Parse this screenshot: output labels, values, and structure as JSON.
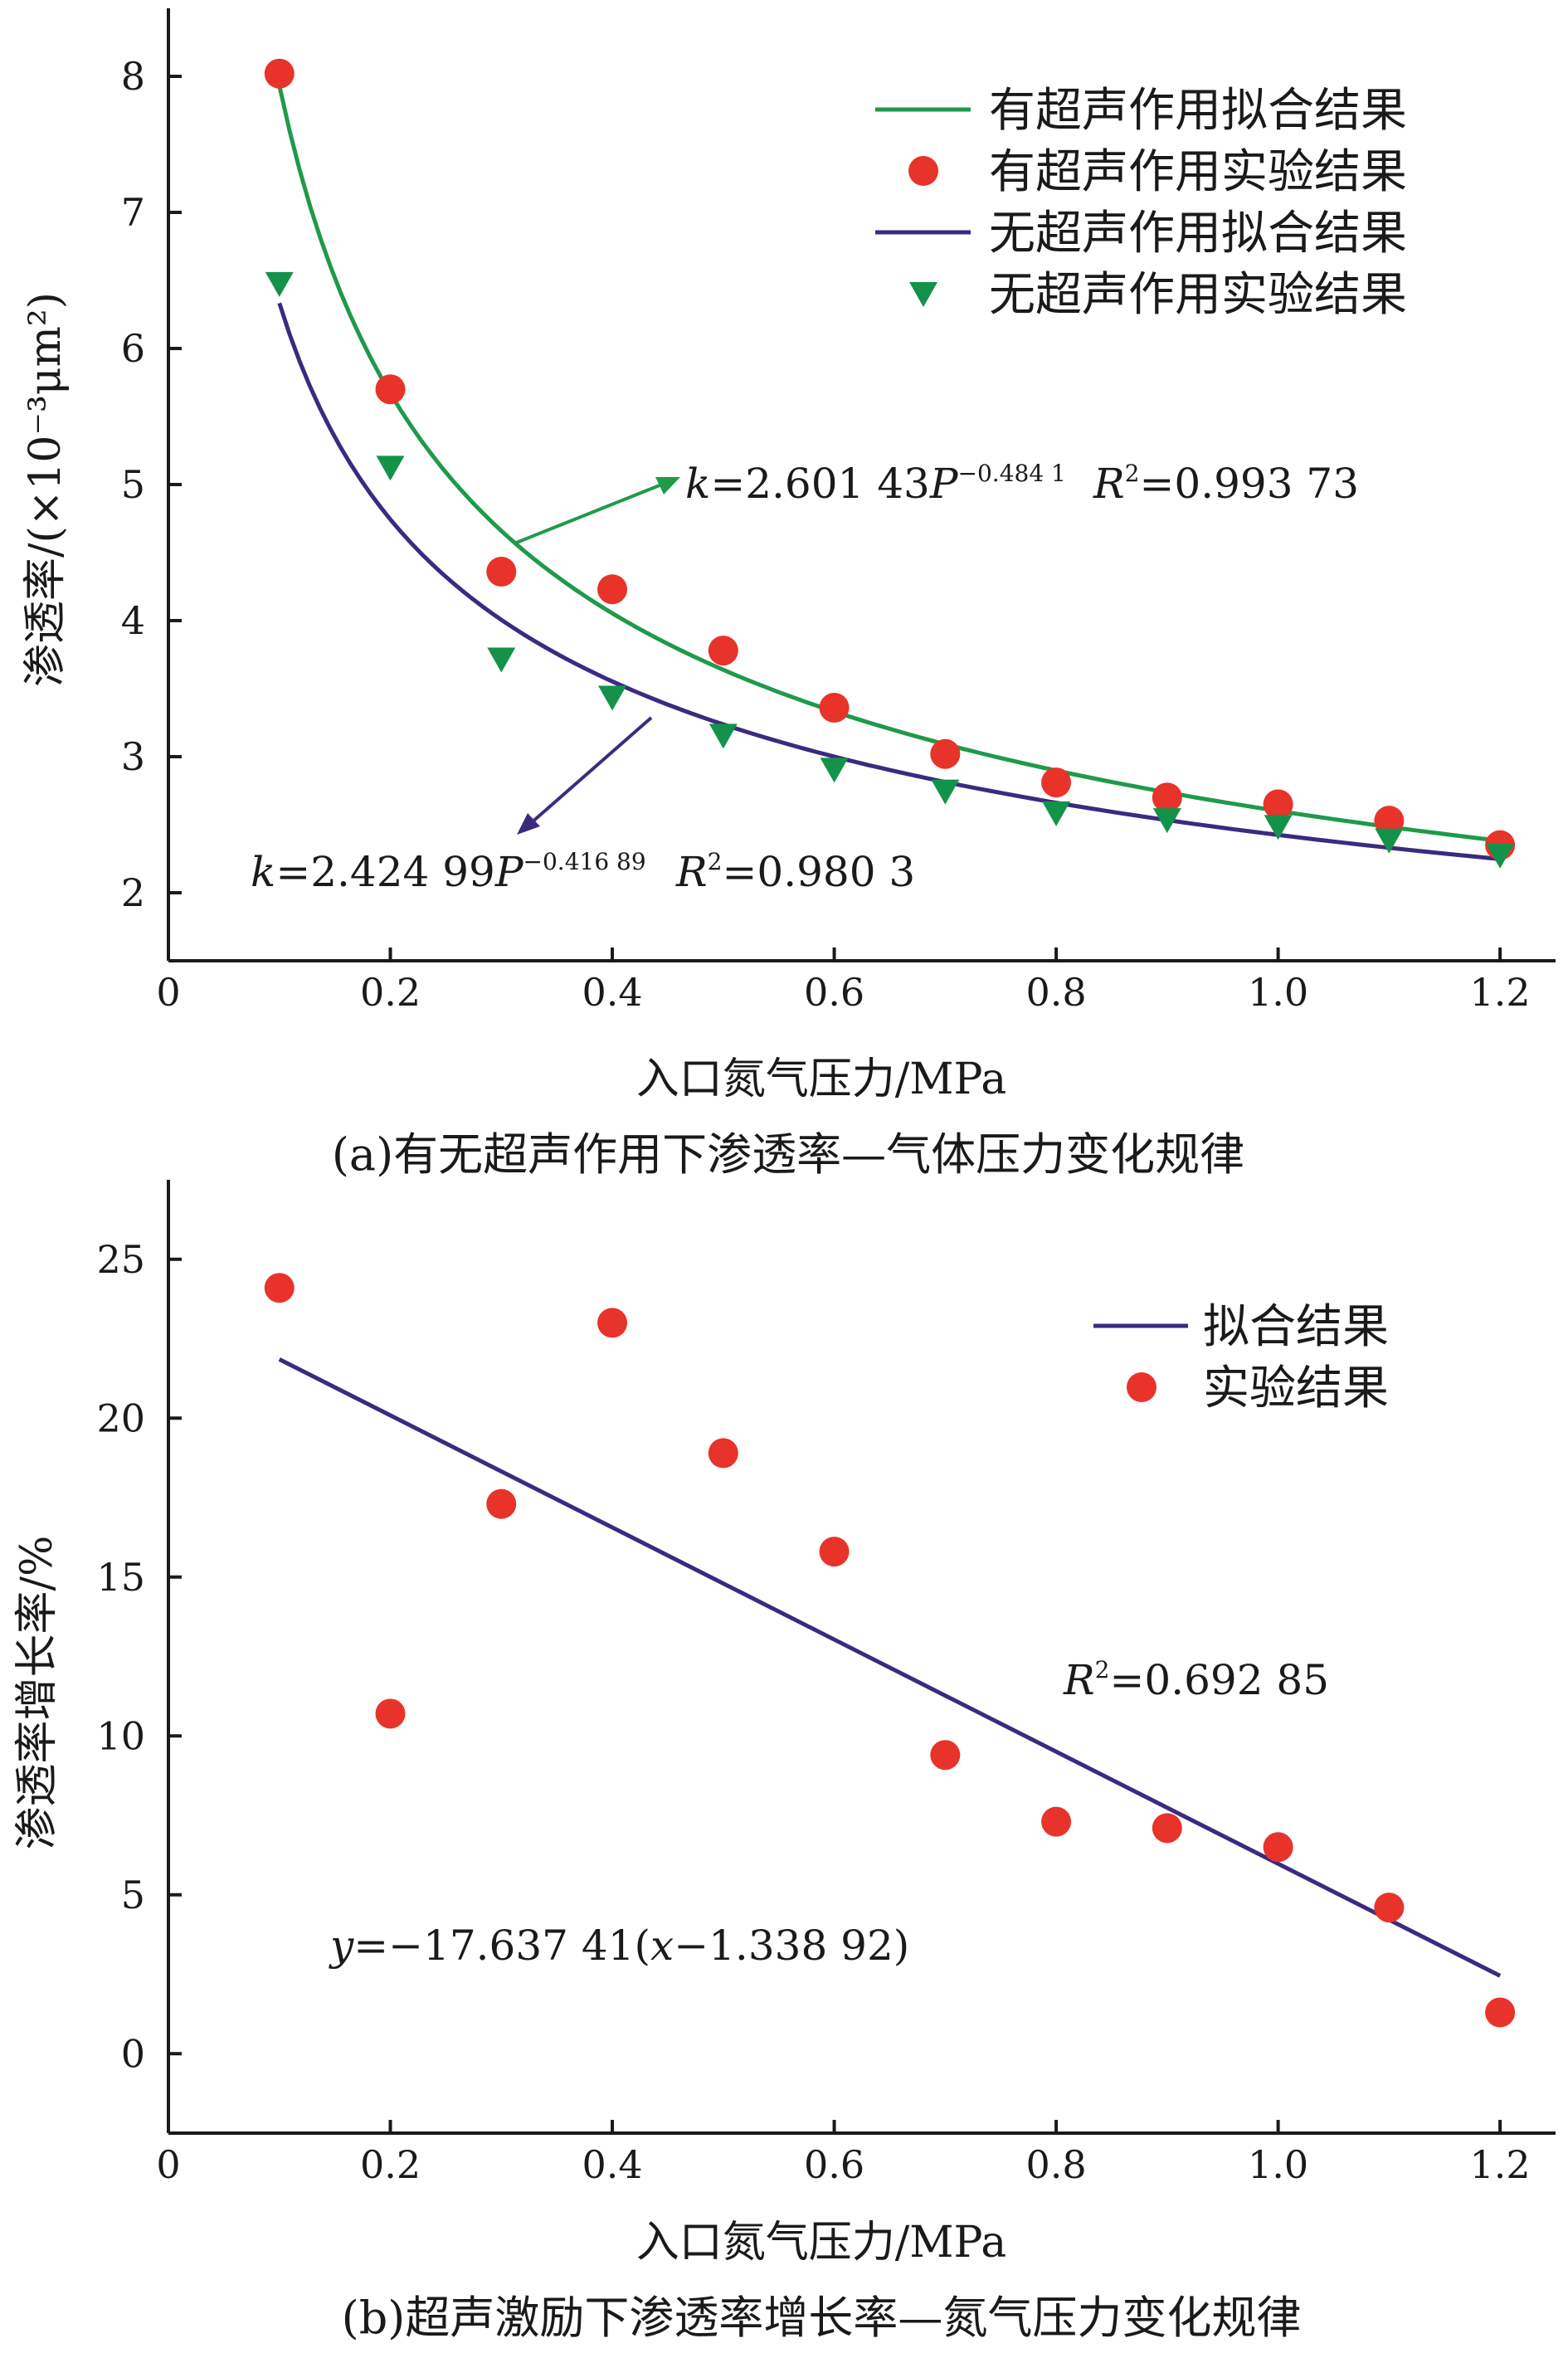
{
  "colors": {
    "green": "#1f9a4a",
    "purple": "#3b2a80",
    "red_dot": "#e8332a",
    "triangle": "#14924a",
    "axis": "#1a1a1a"
  },
  "chart_data": [
    {
      "id": "a",
      "type": "scatter",
      "xlabel": "入口氮气压力/MPa",
      "ylabel": "渗透率/(×10⁻³μm²)",
      "caption": "(a)有无超声作用下渗透率—气体压力变化规律",
      "xlim": [
        0,
        1.25
      ],
      "ylim": [
        1.5,
        8.5
      ],
      "xticks": [
        0,
        0.2,
        0.4,
        0.6,
        0.8,
        1.0,
        1.2
      ],
      "xtick_labels": [
        "0",
        "0.2",
        "0.4",
        "0.6",
        "0.8",
        "1.0",
        "1.2"
      ],
      "yticks": [
        2,
        3,
        4,
        5,
        6,
        7,
        8
      ],
      "ytick_labels": [
        "2",
        "3",
        "4",
        "5",
        "6",
        "7",
        "8"
      ],
      "legend": [
        "有超声作用拟合结果",
        "有超声作用实验结果",
        "无超声作用拟合结果",
        "无超声作用实验结果"
      ],
      "legend_position": "top-right",
      "x": [
        0.1,
        0.2,
        0.3,
        0.4,
        0.5,
        0.6,
        0.7,
        0.8,
        0.9,
        1.0,
        1.1,
        1.2
      ],
      "series": [
        {
          "name": "有超声作用拟合结果",
          "kind": "fit",
          "color": "#1f9a4a",
          "a": 2.60143,
          "b": -0.4841,
          "xrange": [
            0.1,
            1.2
          ]
        },
        {
          "name": "有超声作用实验结果",
          "kind": "circle",
          "color": "#e8332a",
          "values": [
            8.02,
            5.7,
            4.36,
            4.23,
            3.78,
            3.36,
            3.02,
            2.81,
            2.7,
            2.65,
            2.53,
            2.35
          ]
        },
        {
          "name": "无超声作用拟合结果",
          "kind": "fit",
          "color": "#3b2a80",
          "a": 2.42499,
          "b": -0.41689,
          "xrange": [
            0.1,
            1.2
          ]
        },
        {
          "name": "无超声作用实验结果",
          "kind": "triangle",
          "color": "#14924a",
          "values": [
            6.47,
            5.12,
            3.71,
            3.43,
            3.15,
            2.9,
            2.74,
            2.58,
            2.53,
            2.48,
            2.38,
            2.27
          ]
        }
      ],
      "annotations": {
        "with_fit": {
          "k": "k",
          "eq": "=2.601 43",
          "P": "P",
          "exp": "−0.484 1",
          "R": "R",
          "r2": "2",
          "rval": "=0.993 73"
        },
        "without_fit": {
          "k": "k",
          "eq": "=2.424 99",
          "P": "P",
          "exp": "−0.416 89",
          "R": "R",
          "r2": "2",
          "rval": "=0.980 3"
        }
      }
    },
    {
      "id": "b",
      "type": "scatter",
      "xlabel": "入口氮气压力/MPa",
      "ylabel": "渗透率增长率/%",
      "caption": "(b)超声激励下渗透率增长率—氮气压力变化规律",
      "xlim": [
        0,
        1.25
      ],
      "ylim": [
        -2.5,
        27.5
      ],
      "xticks": [
        0,
        0.2,
        0.4,
        0.6,
        0.8,
        1.0,
        1.2
      ],
      "xtick_labels": [
        "0",
        "0.2",
        "0.4",
        "0.6",
        "0.8",
        "1.0",
        "1.2"
      ],
      "yticks": [
        0,
        5,
        10,
        15,
        20,
        25
      ],
      "ytick_labels": [
        "0",
        "5",
        "10",
        "15",
        "20",
        "25"
      ],
      "legend": [
        "拟合结果",
        "实验结果"
      ],
      "legend_position": "top-right",
      "x": [
        0.1,
        0.2,
        0.3,
        0.4,
        0.5,
        0.6,
        0.7,
        0.8,
        0.9,
        1.0,
        1.1,
        1.2
      ],
      "series": [
        {
          "name": "拟合结果",
          "kind": "linear",
          "color": "#3b2a80",
          "slope": -17.63741,
          "x0": 1.33892,
          "xrange": [
            0.1,
            1.2
          ]
        },
        {
          "name": "实验结果",
          "kind": "circle",
          "color": "#e8332a",
          "values": [
            24.1,
            10.7,
            17.3,
            23.0,
            18.9,
            15.8,
            9.4,
            7.3,
            7.1,
            6.5,
            4.6,
            1.3
          ]
        }
      ],
      "annotations": {
        "r2": {
          "R": "R",
          "sup": "2",
          "val": "=0.692 85"
        },
        "eq": {
          "y": "y",
          "eq1": "=−17.637 41(",
          "x": "x",
          "eq2": "−1.338 92)"
        }
      }
    }
  ]
}
